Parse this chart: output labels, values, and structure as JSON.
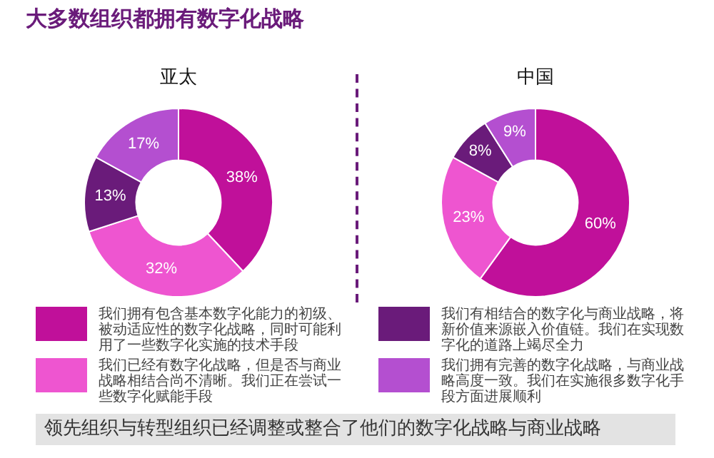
{
  "chart_data": [
    {
      "type": "other",
      "title": "大多数组织都拥有数字化战略",
      "annotations": [
        "领先组织与转型组织已经调整或整合了他们的数字化战略与商业战略"
      ]
    },
    {
      "type": "donut",
      "title": "亚太",
      "legend": "bottom",
      "categories": [
        "我们拥有包含基本数字化能力的初级、被动适应性的数字化战略，同时可能利用了一些数字化实施的技术手段",
        "我们已经有数字化战略，但是否与商业战略相结合尚不清晰。我们正在尝试一些数字化赋能手段",
        "我们有相结合的数字化与商业战略，将新价值来源嵌入价值链。我们在实现数字化的道路上竭尽全力",
        "我们拥有完善的数字化战略，与商业战略高度一致。我们在实施很多数字化手段方面进展顺利"
      ],
      "values": [
        38,
        32,
        13,
        17
      ],
      "value_labels": [
        "38%",
        "32%",
        "13%",
        "17%"
      ],
      "colors": [
        "#c0109a",
        "#ee55d0",
        "#6a1b7a",
        "#b44fd0"
      ]
    },
    {
      "type": "donut",
      "title": "中国",
      "categories": [
        null,
        null,
        null,
        null
      ],
      "values": [
        60,
        23,
        8,
        9
      ],
      "value_labels": [
        "60%",
        "23%",
        "8%",
        "9%"
      ],
      "colors": [
        "#c0109a",
        "#ee55d0",
        "#6a1b7a",
        "#b44fd0"
      ]
    }
  ]
}
